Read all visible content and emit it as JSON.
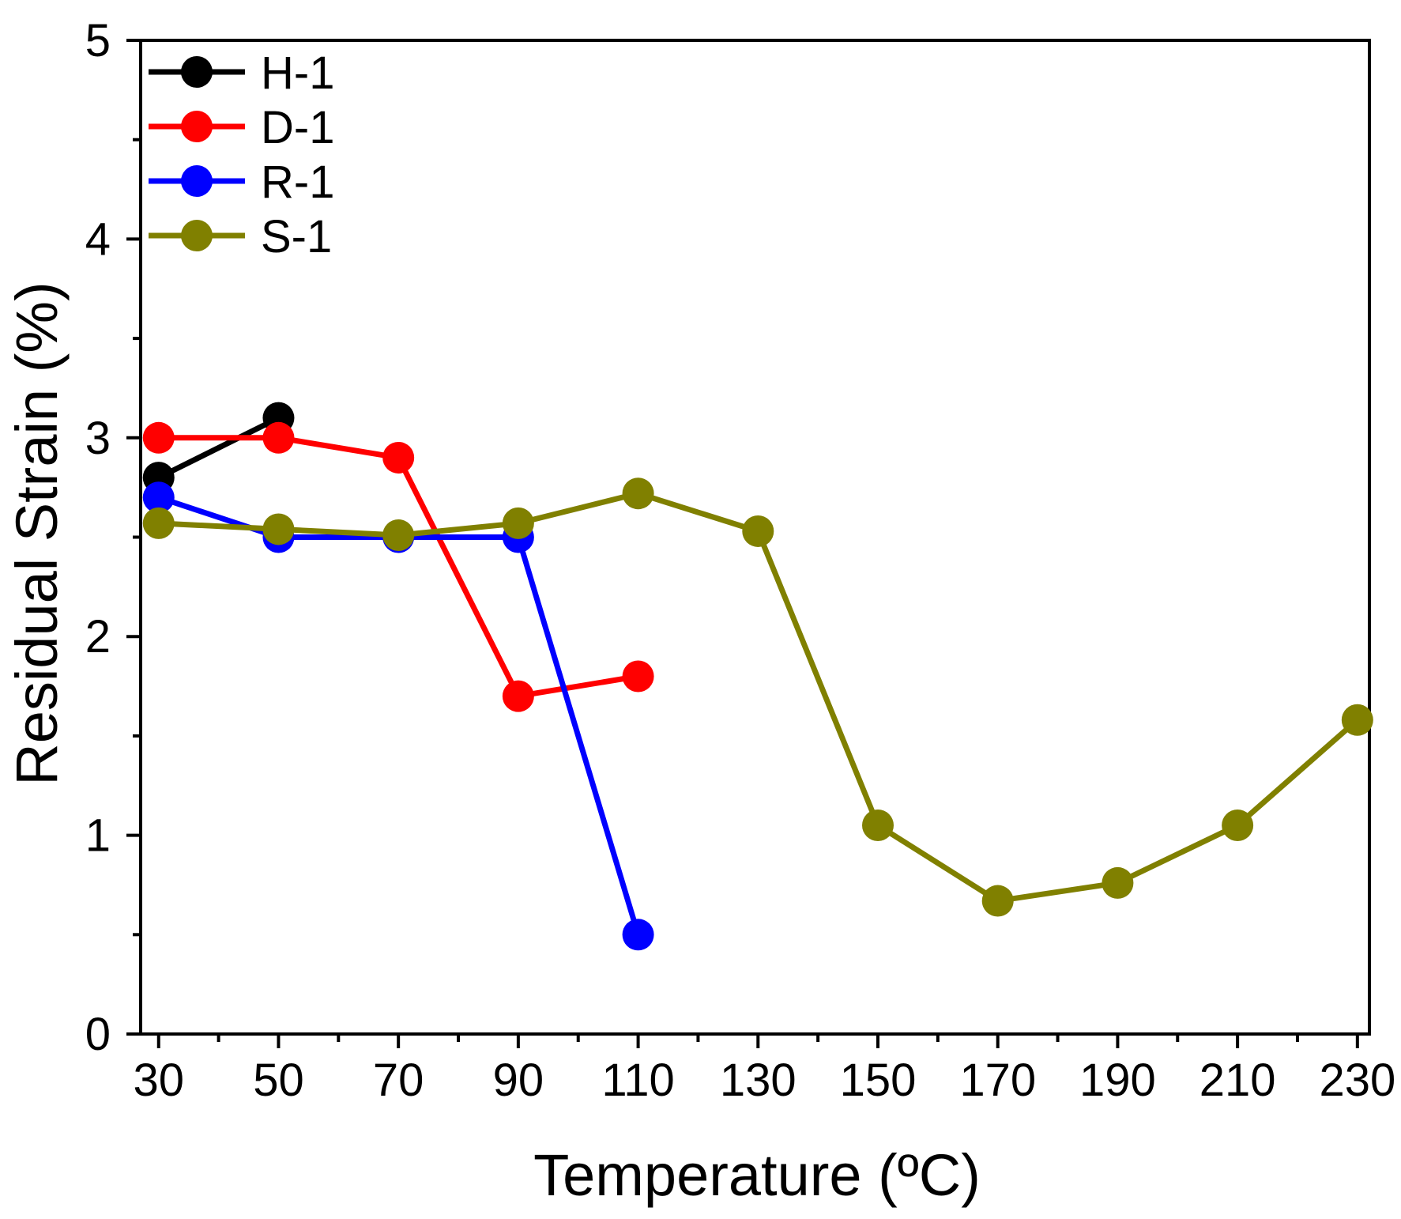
{
  "chart_data": {
    "type": "line",
    "title": "",
    "xlabel": "Temperature (ºC)",
    "ylabel": "Residual Strain (%)",
    "xlim": [
      27,
      232
    ],
    "ylim": [
      0,
      5
    ],
    "x_ticks": [
      30,
      50,
      70,
      90,
      110,
      130,
      150,
      170,
      190,
      210,
      230
    ],
    "x_minor_ticks": [
      40,
      60,
      80,
      100,
      120,
      140,
      160,
      180,
      200,
      220
    ],
    "y_ticks": [
      0,
      1,
      2,
      3,
      4,
      5
    ],
    "y_minor_ticks": [
      0.5,
      1.5,
      2.5,
      3.5,
      4.5
    ],
    "grid": false,
    "legend_position": "top-left",
    "series": [
      {
        "name": "H-1",
        "color": "#000000",
        "x": [
          30,
          50
        ],
        "values": [
          2.8,
          3.1
        ]
      },
      {
        "name": "D-1",
        "color": "#ff0000",
        "x": [
          30,
          50,
          70,
          90,
          110
        ],
        "values": [
          3.0,
          3.0,
          2.9,
          1.7,
          1.8
        ]
      },
      {
        "name": "R-1",
        "color": "#0000ff",
        "x": [
          30,
          50,
          70,
          90,
          110
        ],
        "values": [
          2.7,
          2.5,
          2.5,
          2.5,
          0.5
        ]
      },
      {
        "name": "S-1",
        "color": "#808000",
        "x": [
          30,
          50,
          70,
          90,
          110,
          130,
          150,
          170,
          190,
          210,
          230
        ],
        "values": [
          2.57,
          2.54,
          2.51,
          2.57,
          2.72,
          2.53,
          1.05,
          0.67,
          0.76,
          1.05,
          1.58
        ]
      }
    ]
  }
}
